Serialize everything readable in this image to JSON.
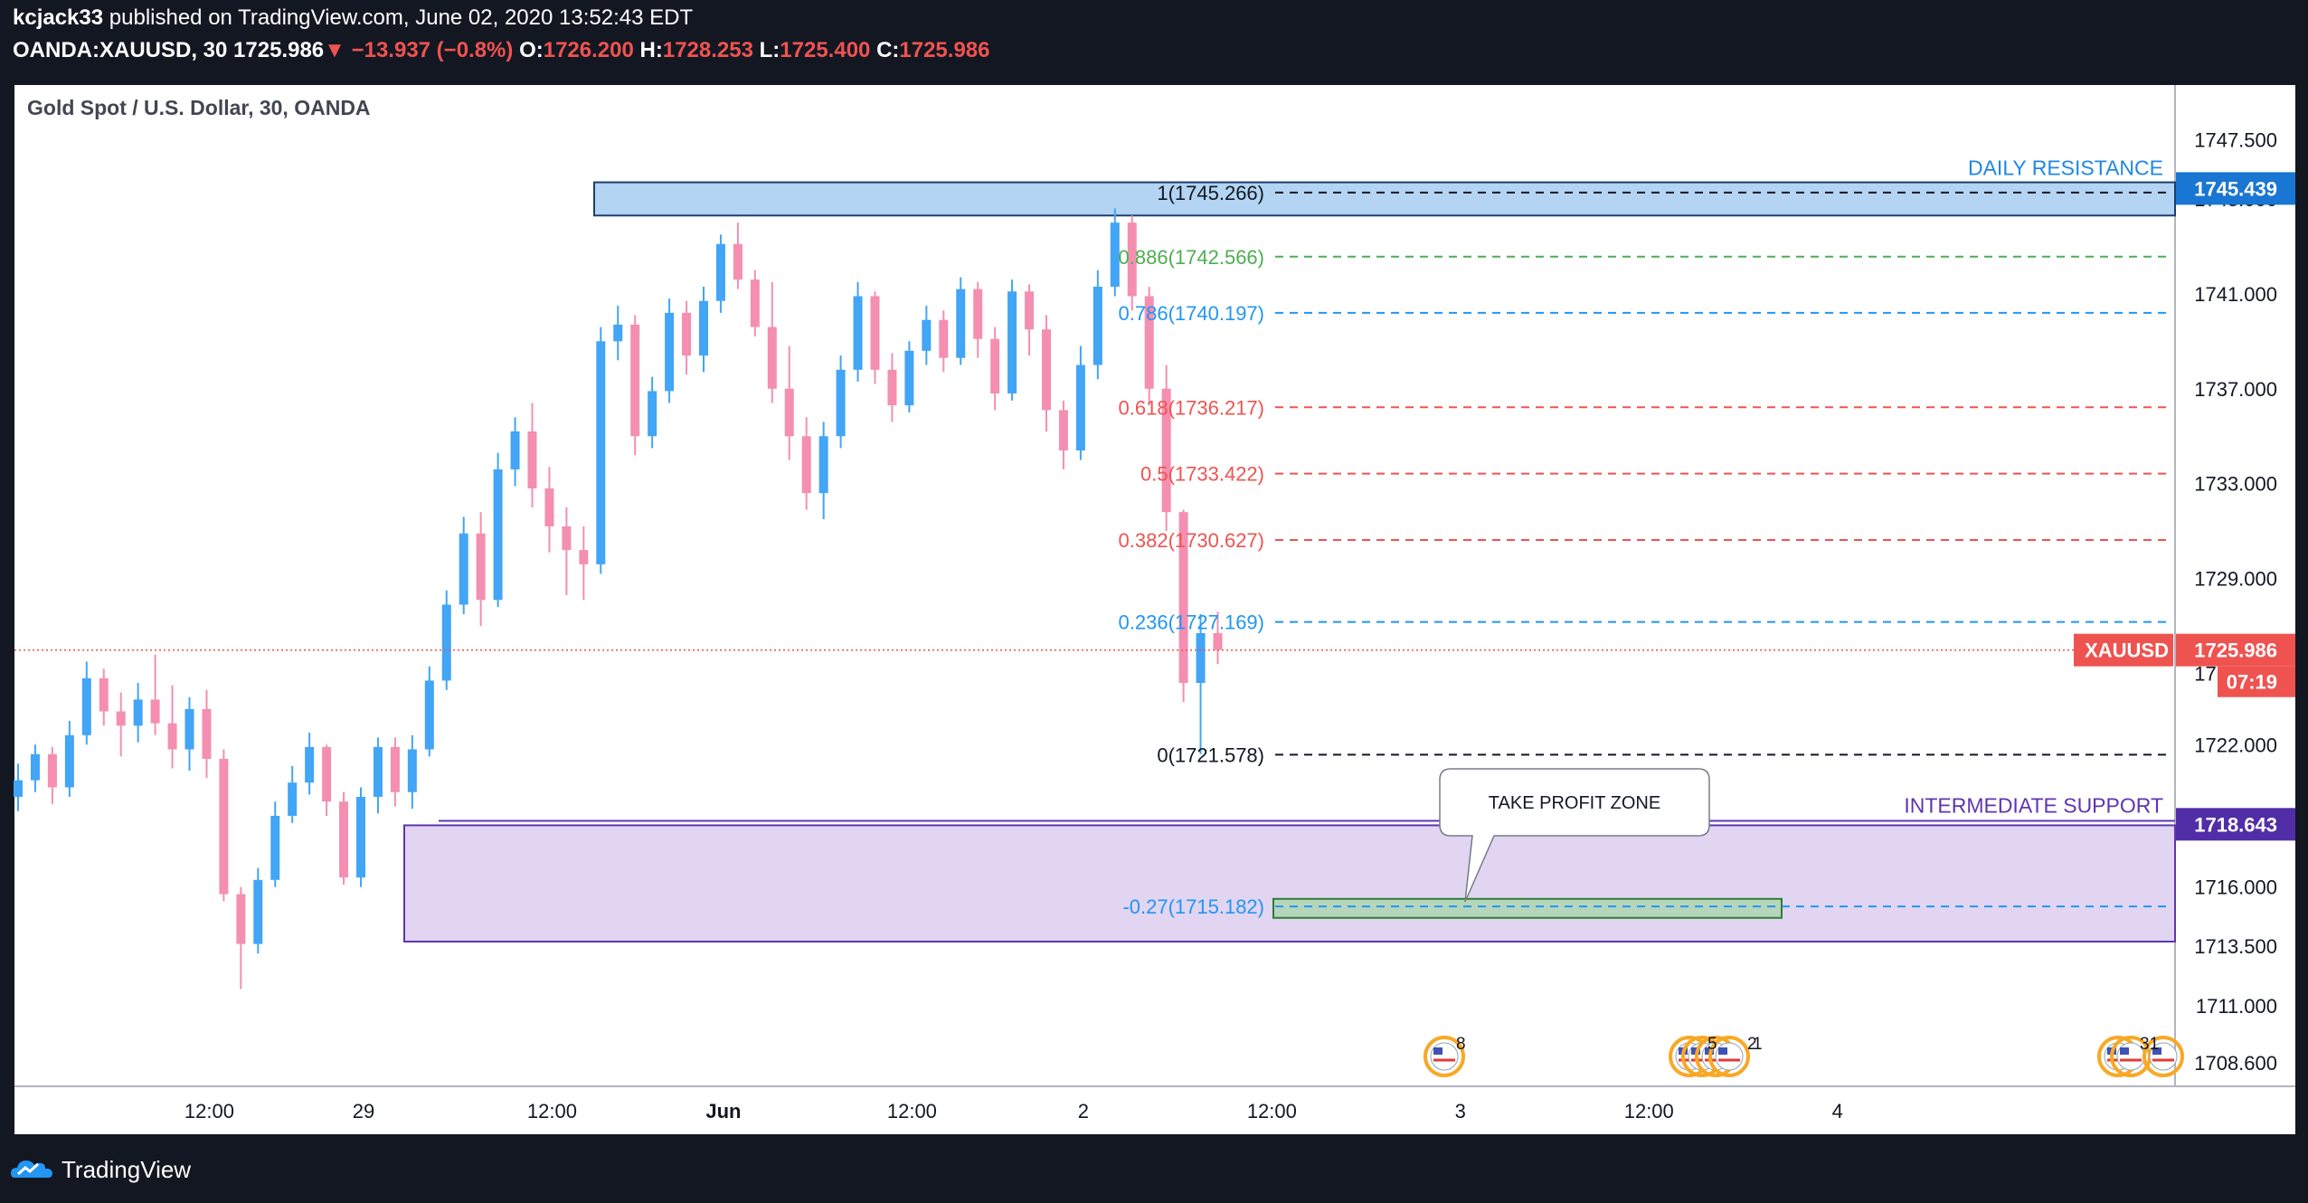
{
  "header": {
    "author": "kcjack33",
    "published_text": "published on TradingView.com, June 02, 2020 13:52:43 EDT",
    "symbol": "OANDA:XAUUSD, 30",
    "last": "1725.986",
    "change_arrow": "▼",
    "change": "−13.937 (−0.8%)",
    "o_label": "O:",
    "o_value": "1726.200",
    "h_label": "H:",
    "h_value": "1728.253",
    "l_label": "L:",
    "l_value": "1725.400",
    "c_label": "C:",
    "c_value": "1725.986"
  },
  "footer": {
    "brand": "TradingView"
  },
  "chart_data": {
    "type": "candlestick",
    "title": "Gold Spot / U.S. Dollar, 30, OANDA",
    "ylim": [
      1707.6,
      1749.8
    ],
    "y_ticks": [
      "1747.500",
      "1745.000",
      "1741.000",
      "1737.000",
      "1733.000",
      "1729.000",
      "1725.000",
      "1722.000",
      "1718.643",
      "1716.000",
      "1713.500",
      "1711.000",
      "1708.600"
    ],
    "x_ticks": [
      {
        "label": "12:00",
        "index": 11
      },
      {
        "label": "29",
        "index": 20
      },
      {
        "label": "12:00",
        "index": 31
      },
      {
        "label": "Jun",
        "index": 41,
        "bold": true
      },
      {
        "label": "12:00",
        "index": 52
      },
      {
        "label": "2",
        "index": 62
      },
      {
        "label": "12:00",
        "index": 73
      },
      {
        "label": "3",
        "index": 84
      },
      {
        "label": "12:00",
        "index": 95
      },
      {
        "label": "4",
        "index": 106
      }
    ],
    "candles": [
      [
        1719.8,
        1721.2,
        1719.2,
        1720.5
      ],
      [
        1720.5,
        1722.0,
        1720.0,
        1721.6
      ],
      [
        1721.6,
        1721.9,
        1719.5,
        1720.2
      ],
      [
        1720.2,
        1723.0,
        1719.8,
        1722.4
      ],
      [
        1722.4,
        1725.5,
        1722.0,
        1724.8
      ],
      [
        1724.8,
        1725.2,
        1722.8,
        1723.4
      ],
      [
        1723.4,
        1724.2,
        1721.5,
        1722.8
      ],
      [
        1722.8,
        1724.6,
        1722.1,
        1723.9
      ],
      [
        1723.9,
        1725.8,
        1722.4,
        1722.9
      ],
      [
        1722.9,
        1724.5,
        1721.0,
        1721.8
      ],
      [
        1721.8,
        1724.0,
        1720.9,
        1723.5
      ],
      [
        1723.5,
        1724.3,
        1720.6,
        1721.4
      ],
      [
        1721.4,
        1721.8,
        1715.4,
        1715.7
      ],
      [
        1715.7,
        1716.0,
        1711.7,
        1713.6
      ],
      [
        1713.6,
        1716.8,
        1713.2,
        1716.3
      ],
      [
        1716.3,
        1719.6,
        1716.0,
        1719.0
      ],
      [
        1719.0,
        1721.1,
        1718.7,
        1720.4
      ],
      [
        1720.4,
        1722.5,
        1719.9,
        1721.9
      ],
      [
        1721.9,
        1722.0,
        1719.0,
        1719.6
      ],
      [
        1719.6,
        1720.0,
        1716.1,
        1716.4
      ],
      [
        1716.4,
        1720.2,
        1716.0,
        1719.8
      ],
      [
        1719.8,
        1722.3,
        1719.1,
        1721.9
      ],
      [
        1721.9,
        1722.3,
        1719.4,
        1720.0
      ],
      [
        1720.0,
        1722.4,
        1719.3,
        1721.8
      ],
      [
        1721.8,
        1725.3,
        1721.5,
        1724.7
      ],
      [
        1724.7,
        1728.5,
        1724.3,
        1727.9
      ],
      [
        1727.9,
        1731.6,
        1727.5,
        1730.9
      ],
      [
        1730.9,
        1731.8,
        1727.0,
        1728.1
      ],
      [
        1728.1,
        1734.3,
        1727.8,
        1733.6
      ],
      [
        1733.6,
        1735.8,
        1732.9,
        1735.2
      ],
      [
        1735.2,
        1736.4,
        1732.0,
        1732.8
      ],
      [
        1732.8,
        1733.7,
        1730.1,
        1731.2
      ],
      [
        1731.2,
        1732.0,
        1728.3,
        1730.2
      ],
      [
        1730.2,
        1731.2,
        1728.1,
        1729.6
      ],
      [
        1729.6,
        1739.6,
        1729.2,
        1739.0
      ],
      [
        1739.0,
        1740.5,
        1738.2,
        1739.7
      ],
      [
        1739.7,
        1740.1,
        1734.2,
        1735.0
      ],
      [
        1735.0,
        1737.5,
        1734.5,
        1736.9
      ],
      [
        1736.9,
        1740.8,
        1736.4,
        1740.2
      ],
      [
        1740.2,
        1740.7,
        1737.6,
        1738.4
      ],
      [
        1738.4,
        1741.3,
        1737.7,
        1740.7
      ],
      [
        1740.7,
        1743.5,
        1740.2,
        1743.1
      ],
      [
        1743.1,
        1744.0,
        1741.2,
        1741.6
      ],
      [
        1741.6,
        1742.0,
        1739.2,
        1739.6
      ],
      [
        1739.6,
        1741.5,
        1736.4,
        1737.0
      ],
      [
        1737.0,
        1738.8,
        1734.0,
        1735.0
      ],
      [
        1735.0,
        1735.8,
        1731.9,
        1732.6
      ],
      [
        1732.6,
        1735.6,
        1731.5,
        1735.0
      ],
      [
        1735.0,
        1738.4,
        1734.5,
        1737.8
      ],
      [
        1737.8,
        1741.5,
        1737.3,
        1740.9
      ],
      [
        1740.9,
        1741.1,
        1737.2,
        1737.8
      ],
      [
        1737.8,
        1738.5,
        1735.6,
        1736.3
      ],
      [
        1736.3,
        1739.0,
        1736.0,
        1738.6
      ],
      [
        1738.6,
        1740.5,
        1738.0,
        1739.9
      ],
      [
        1739.9,
        1740.3,
        1737.7,
        1738.3
      ],
      [
        1738.3,
        1741.7,
        1738.0,
        1741.2
      ],
      [
        1741.2,
        1741.5,
        1738.3,
        1739.1
      ],
      [
        1739.1,
        1739.6,
        1736.1,
        1736.8
      ],
      [
        1736.8,
        1741.6,
        1736.5,
        1741.1
      ],
      [
        1741.1,
        1741.4,
        1738.4,
        1739.5
      ],
      [
        1739.5,
        1740.1,
        1735.2,
        1736.1
      ],
      [
        1736.1,
        1736.5,
        1733.6,
        1734.4
      ],
      [
        1734.4,
        1738.8,
        1734.0,
        1738.0
      ],
      [
        1738.0,
        1742.0,
        1737.4,
        1741.3
      ],
      [
        1741.3,
        1744.6,
        1740.9,
        1744.0
      ],
      [
        1744.0,
        1744.3,
        1740.3,
        1740.9
      ],
      [
        1740.9,
        1741.3,
        1736.3,
        1737.0
      ],
      [
        1737.0,
        1738.0,
        1731.0,
        1731.8
      ],
      [
        1731.8,
        1731.9,
        1723.8,
        1724.6
      ],
      [
        1724.6,
        1727.5,
        1721.6,
        1726.7
      ],
      [
        1726.7,
        1727.6,
        1725.4,
        1725.99
      ]
    ],
    "candle_x_index": [
      0,
      1,
      2,
      3,
      4,
      5,
      6,
      7,
      8,
      9,
      10,
      11,
      12,
      13,
      14,
      15,
      16,
      17,
      18,
      19,
      20,
      21,
      22,
      23,
      24,
      25,
      26,
      27,
      28,
      29,
      30,
      31,
      32,
      33,
      34,
      35,
      36,
      37,
      38,
      39,
      40,
      41,
      42,
      43,
      44,
      45,
      46,
      47,
      48,
      49,
      50,
      51,
      52,
      53,
      54,
      55,
      56,
      57,
      58,
      59,
      60,
      61,
      62,
      63,
      64,
      65,
      66,
      67,
      68,
      69,
      70
    ],
    "fib_levels": [
      {
        "label": "1(1745.266)",
        "value": 1745.266,
        "color": "#ffffff"
      },
      {
        "label": "0.886(1742.566)",
        "value": 1742.566,
        "color": "#4caf50"
      },
      {
        "label": "0.786(1740.197)",
        "value": 1740.197,
        "color": "#2196f3"
      },
      {
        "label": "0.618(1736.217)",
        "value": 1736.217,
        "color": "#ef5350"
      },
      {
        "label": "0.5(1733.422)",
        "value": 1733.422,
        "color": "#ef5350"
      },
      {
        "label": "0.382(1730.627)",
        "value": 1730.627,
        "color": "#ef5350"
      },
      {
        "label": "0.236(1727.169)",
        "value": 1727.169,
        "color": "#2196f3"
      },
      {
        "label": "0(1721.578)",
        "value": 1721.578,
        "color": "#ffffff"
      },
      {
        "label": "-0.27(1715.182)",
        "value": 1715.182,
        "color": "#2196f3"
      }
    ],
    "zones": [
      {
        "label": "DAILY RESISTANCE",
        "from": 1744.3,
        "to": 1745.7,
        "fill": "#b3d4f2",
        "stroke": "#1e3d6e",
        "text_color": "#1e88e5"
      },
      {
        "label": "INTERMEDIATE SUPPORT",
        "from": 1713.7,
        "to": 1718.6,
        "fill": "#e1d5f2",
        "stroke": "#5e35b1",
        "text_color": "#5e35b1"
      }
    ],
    "take_profit": {
      "label": "TAKE PROFIT ZONE",
      "from": 1714.7,
      "to": 1715.5
    },
    "price_labels": [
      {
        "value": "1745.439",
        "price": 1745.439,
        "bg": "#1976d2"
      },
      {
        "value": "1718.643",
        "price": 1718.643,
        "bg": "#512da8"
      },
      {
        "symbol": "XAUUSD",
        "value": "1725.986",
        "price": 1725.986,
        "bg": "#ef5350",
        "countdown": "07:19"
      }
    ],
    "events": [
      "8",
      "5",
      "2",
      "1",
      "31"
    ],
    "bull_color": "#42a5f5",
    "bear_color": "#f48fb1"
  }
}
